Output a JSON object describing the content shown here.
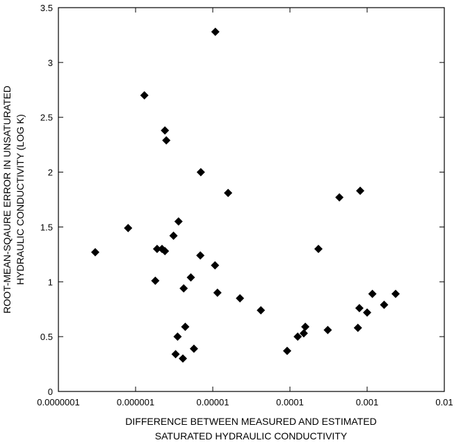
{
  "chart_data": {
    "type": "scatter",
    "title": "",
    "xlabel_lines": [
      "DIFFERENCE BETWEEN MEASURED AND ESTIMATED",
      "SATURATED HYDRAULIC CONDUCTIVITY"
    ],
    "ylabel_lines": [
      "ROOT-MEAN-SQAURE ERROR IN UNSATURATED",
      "HYDRAULIC CONDUCTIVITY (LOG K)"
    ],
    "x_scale": "log",
    "xlim": [
      1e-07,
      0.01
    ],
    "ylim": [
      0,
      3.5
    ],
    "x_ticks": [
      {
        "value": 1e-07,
        "label": "0.0000001"
      },
      {
        "value": 1e-06,
        "label": "0.000001"
      },
      {
        "value": 1e-05,
        "label": "0.00001"
      },
      {
        "value": 0.0001,
        "label": "0.0001"
      },
      {
        "value": 0.001,
        "label": "0.001"
      },
      {
        "value": 0.01,
        "label": "0.01"
      }
    ],
    "y_ticks": [
      {
        "value": 0,
        "label": "0"
      },
      {
        "value": 0.5,
        "label": "0.5"
      },
      {
        "value": 1,
        "label": "1"
      },
      {
        "value": 1.5,
        "label": "1.5"
      },
      {
        "value": 2,
        "label": "2"
      },
      {
        "value": 2.5,
        "label": "2.5"
      },
      {
        "value": 3,
        "label": "3"
      },
      {
        "value": 3.5,
        "label": "3.5"
      }
    ],
    "grid": false,
    "marker": "diamond",
    "marker_color": "#000000",
    "points": [
      {
        "x": 3e-07,
        "y": 1.27
      },
      {
        "x": 8e-07,
        "y": 1.49
      },
      {
        "x": 1.3e-06,
        "y": 2.7
      },
      {
        "x": 1.8e-06,
        "y": 1.01
      },
      {
        "x": 1.9e-06,
        "y": 1.3
      },
      {
        "x": 2.2e-06,
        "y": 1.3
      },
      {
        "x": 2.4e-06,
        "y": 1.28
      },
      {
        "x": 2.4e-06,
        "y": 2.38
      },
      {
        "x": 2.5e-06,
        "y": 2.29
      },
      {
        "x": 3.1e-06,
        "y": 1.42
      },
      {
        "x": 3.3e-06,
        "y": 0.34
      },
      {
        "x": 3.5e-06,
        "y": 0.5
      },
      {
        "x": 3.6e-06,
        "y": 1.55
      },
      {
        "x": 4.1e-06,
        "y": 0.3
      },
      {
        "x": 4.2e-06,
        "y": 0.94
      },
      {
        "x": 4.4e-06,
        "y": 0.59
      },
      {
        "x": 5.2e-06,
        "y": 1.04
      },
      {
        "x": 5.7e-06,
        "y": 0.39
      },
      {
        "x": 6.9e-06,
        "y": 1.24
      },
      {
        "x": 7e-06,
        "y": 2.0
      },
      {
        "x": 1.07e-05,
        "y": 1.15
      },
      {
        "x": 1.08e-05,
        "y": 3.28
      },
      {
        "x": 1.15e-05,
        "y": 0.9
      },
      {
        "x": 1.58e-05,
        "y": 1.81
      },
      {
        "x": 2.25e-05,
        "y": 0.85
      },
      {
        "x": 4.2e-05,
        "y": 0.74
      },
      {
        "x": 9.2e-05,
        "y": 0.37
      },
      {
        "x": 0.000126,
        "y": 0.5
      },
      {
        "x": 0.000151,
        "y": 0.53
      },
      {
        "x": 0.000158,
        "y": 0.59
      },
      {
        "x": 0.000234,
        "y": 1.3
      },
      {
        "x": 0.000309,
        "y": 0.56
      },
      {
        "x": 0.000437,
        "y": 1.77
      },
      {
        "x": 0.000759,
        "y": 0.58
      },
      {
        "x": 0.000794,
        "y": 0.76
      },
      {
        "x": 0.000813,
        "y": 1.83
      },
      {
        "x": 0.001,
        "y": 0.72
      },
      {
        "x": 0.00117,
        "y": 0.89
      },
      {
        "x": 0.00166,
        "y": 0.79
      },
      {
        "x": 0.00234,
        "y": 0.89
      }
    ]
  }
}
